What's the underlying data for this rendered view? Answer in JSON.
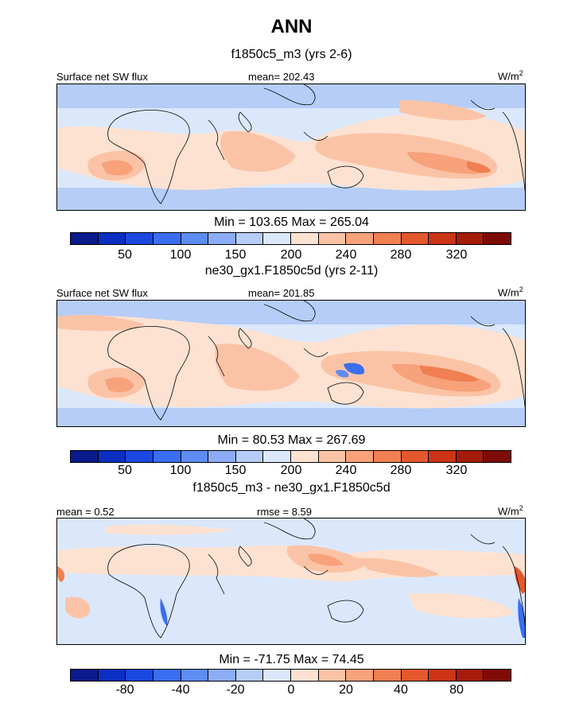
{
  "title": "ANN",
  "panels": [
    {
      "subtitle": "f1850c5_m3 (yrs 2-6)",
      "left_label": "Surface net SW flux",
      "center_label": "mean= 202.43",
      "right_label_base": "W/m",
      "right_label_sup": "2",
      "min_max": "Min = 103.65 Max = 265.04",
      "ticks": [
        "50",
        "100",
        "150",
        "200",
        "240",
        "280",
        "320"
      ]
    },
    {
      "subtitle": "ne30_gx1.F1850c5d (yrs 2-11)",
      "left_label": "Surface net SW flux",
      "center_label": "mean= 201.85",
      "right_label_base": "W/m",
      "right_label_sup": "2",
      "min_max": "Min =  80.53 Max = 267.69",
      "ticks": [
        "50",
        "100",
        "150",
        "200",
        "240",
        "280",
        "320"
      ]
    },
    {
      "subtitle": "f1850c5_m3 - ne30_gx1.F1850c5d",
      "left_label": "mean =   0.52",
      "center_label": "rmse =   8.59",
      "right_label_base": "W/m",
      "right_label_sup": "2",
      "min_max": "Min = -71.75 Max =  74.45",
      "ticks": [
        "-80",
        "-40",
        "-20",
        "0",
        "20",
        "40",
        "80"
      ]
    }
  ],
  "colorbar_colors": [
    "#0a1a8c",
    "#0b2fc2",
    "#1a48e0",
    "#3a6ef0",
    "#5f8cf2",
    "#8cadf5",
    "#b5cdf7",
    "#dbe8fb",
    "#fde2d2",
    "#fbc3a6",
    "#f7a27b",
    "#f07f52",
    "#e4582e",
    "#cc3416",
    "#a61c0b",
    "#7d0b06"
  ],
  "map_colors": {
    "field_low": "#dbe8fb",
    "field_mid": "#b5cdf7",
    "field_high": "#fbc3a6",
    "field_peak": "#f07f52",
    "coast": "#000000"
  }
}
